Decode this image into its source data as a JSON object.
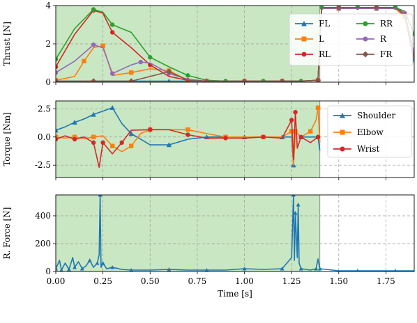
{
  "chart_data": [
    {
      "type": "line",
      "ylabel": "Thrust [N]",
      "xlim": [
        0,
        1.9
      ],
      "ylim": [
        0,
        4
      ],
      "yticks": [
        0,
        2,
        4
      ],
      "grid": true,
      "shaded_x": [
        0,
        1.4
      ],
      "legend_placement": "top-right",
      "legend_columns": 2,
      "series": [
        {
          "name": "FL",
          "color": "#1f77b4",
          "marker": "triangle",
          "x": [
            0.0,
            0.1,
            0.2,
            0.3,
            0.4,
            0.5,
            0.6,
            0.7,
            0.8,
            0.9,
            1.0,
            1.1,
            1.2,
            1.3,
            1.39,
            1.41,
            1.5,
            1.6,
            1.7,
            1.8,
            1.85,
            1.9
          ],
          "y": [
            0.05,
            0.05,
            0.05,
            0.05,
            0.05,
            0.05,
            0.05,
            0.05,
            0.05,
            0.05,
            0.05,
            0.05,
            0.05,
            0.05,
            0.1,
            3.85,
            3.85,
            3.85,
            3.85,
            3.85,
            3.5,
            1.0
          ]
        },
        {
          "name": "L",
          "color": "#ff7f0e",
          "marker": "square",
          "x": [
            0.0,
            0.1,
            0.15,
            0.2,
            0.25,
            0.3,
            0.4,
            0.5,
            0.6,
            0.7,
            0.8,
            0.9,
            1.0,
            1.1,
            1.2,
            1.3,
            1.39,
            1.41,
            1.5,
            1.6,
            1.7,
            1.8,
            1.85,
            1.9
          ],
          "y": [
            0.1,
            0.3,
            1.1,
            1.8,
            1.9,
            0.35,
            0.5,
            0.7,
            0.6,
            0.1,
            0.05,
            0.05,
            0.05,
            0.05,
            0.05,
            0.05,
            0.1,
            3.85,
            3.85,
            3.85,
            3.85,
            3.85,
            3.4,
            1.2
          ]
        },
        {
          "name": "RL",
          "color": "#d62728",
          "marker": "circle",
          "x": [
            0.0,
            0.1,
            0.2,
            0.25,
            0.3,
            0.4,
            0.5,
            0.6,
            0.7,
            0.8,
            0.9,
            1.0,
            1.1,
            1.2,
            1.3,
            1.39,
            1.41,
            1.5,
            1.6,
            1.7,
            1.8,
            1.85,
            1.9
          ],
          "y": [
            0.8,
            2.5,
            3.75,
            3.6,
            2.6,
            1.8,
            0.9,
            0.3,
            0.1,
            0.05,
            0.05,
            0.05,
            0.05,
            0.05,
            0.05,
            0.1,
            3.9,
            3.9,
            3.9,
            3.9,
            3.9,
            3.6,
            1.5
          ]
        },
        {
          "name": "RR",
          "color": "#2ca02c",
          "marker": "circle",
          "x": [
            0.0,
            0.1,
            0.2,
            0.25,
            0.3,
            0.4,
            0.5,
            0.6,
            0.7,
            0.8,
            0.9,
            1.0,
            1.1,
            1.2,
            1.3,
            1.39,
            1.41,
            1.5,
            1.6,
            1.7,
            1.8,
            1.85,
            1.9
          ],
          "y": [
            1.2,
            2.8,
            3.8,
            3.65,
            3.0,
            2.6,
            1.3,
            0.8,
            0.35,
            0.1,
            0.05,
            0.05,
            0.05,
            0.05,
            0.05,
            0.1,
            3.9,
            3.9,
            3.9,
            3.9,
            3.9,
            3.7,
            2.5
          ]
        },
        {
          "name": "R",
          "color": "#9467bd",
          "marker": "circle",
          "x": [
            0.0,
            0.1,
            0.2,
            0.25,
            0.3,
            0.4,
            0.45,
            0.5,
            0.6,
            0.7,
            0.8,
            0.9,
            1.0,
            1.1,
            1.2,
            1.3,
            1.39,
            1.41,
            1.5,
            1.6,
            1.7,
            1.8,
            1.85,
            1.9
          ],
          "y": [
            0.5,
            1.1,
            1.95,
            1.8,
            0.45,
            0.9,
            1.05,
            1.0,
            0.45,
            0.15,
            0.05,
            0.05,
            0.05,
            0.05,
            0.05,
            0.05,
            0.1,
            3.85,
            3.85,
            3.85,
            3.85,
            3.85,
            3.6,
            1.5
          ]
        },
        {
          "name": "FR",
          "color": "#8c564b",
          "marker": "diamond",
          "x": [
            0.0,
            0.1,
            0.2,
            0.3,
            0.4,
            0.5,
            0.6,
            0.7,
            0.8,
            0.9,
            1.0,
            1.1,
            1.2,
            1.3,
            1.39,
            1.41,
            1.5,
            1.6,
            1.7,
            1.8,
            1.85,
            1.9
          ],
          "y": [
            0.05,
            0.05,
            0.05,
            0.05,
            0.05,
            0.3,
            0.55,
            0.1,
            0.05,
            0.05,
            0.05,
            0.05,
            0.05,
            0.05,
            0.1,
            3.9,
            3.9,
            3.9,
            3.9,
            3.9,
            3.5,
            1.2
          ]
        }
      ]
    },
    {
      "type": "line",
      "ylabel": "Torque [Nm]",
      "xlim": [
        0,
        1.9
      ],
      "ylim": [
        -3.6,
        3.2
      ],
      "yticks": [
        -2.5,
        0.0,
        2.5
      ],
      "grid": true,
      "shaded_x": [
        0,
        1.4
      ],
      "legend_placement": "top-right",
      "legend_columns": 1,
      "series": [
        {
          "name": "Shoulder",
          "color": "#1f77b4",
          "marker": "triangle",
          "x": [
            0.0,
            0.05,
            0.1,
            0.15,
            0.2,
            0.25,
            0.3,
            0.35,
            0.4,
            0.5,
            0.6,
            0.7,
            0.8,
            0.9,
            1.0,
            1.1,
            1.2,
            1.25,
            1.26,
            1.27,
            1.3,
            1.35,
            1.39,
            1.4
          ],
          "y": [
            0.6,
            0.9,
            1.3,
            1.6,
            2.0,
            2.3,
            2.6,
            1.2,
            0.3,
            -0.7,
            -0.7,
            -0.2,
            0.0,
            0.0,
            0.0,
            0.0,
            0.0,
            0.0,
            -2.5,
            0.5,
            0.0,
            0.0,
            0.0,
            -1.2
          ]
        },
        {
          "name": "Elbow",
          "color": "#ff7f0e",
          "marker": "square",
          "x": [
            0.0,
            0.05,
            0.1,
            0.15,
            0.2,
            0.25,
            0.3,
            0.35,
            0.4,
            0.45,
            0.5,
            0.6,
            0.7,
            0.8,
            0.9,
            1.0,
            1.1,
            1.2,
            1.25,
            1.26,
            1.27,
            1.3,
            1.35,
            1.38,
            1.39,
            1.4
          ],
          "y": [
            0.0,
            -0.1,
            0.0,
            -0.15,
            0.0,
            0.1,
            -0.8,
            -1.3,
            -0.8,
            0.3,
            0.65,
            0.65,
            0.65,
            0.3,
            0.0,
            0.0,
            0.0,
            0.0,
            0.5,
            -2.5,
            0.5,
            0.0,
            0.5,
            1.5,
            2.6,
            -0.5
          ]
        },
        {
          "name": "Wrist",
          "color": "#d62728",
          "marker": "circle",
          "x": [
            0.0,
            0.05,
            0.1,
            0.15,
            0.2,
            0.23,
            0.25,
            0.3,
            0.35,
            0.4,
            0.5,
            0.6,
            0.7,
            0.8,
            0.9,
            1.0,
            1.1,
            1.2,
            1.25,
            1.26,
            1.27,
            1.28,
            1.3,
            1.35,
            1.39,
            1.4
          ],
          "y": [
            -0.2,
            0.1,
            -0.2,
            0.0,
            -0.5,
            -2.7,
            -0.5,
            -1.5,
            -0.5,
            0.6,
            0.65,
            0.65,
            0.2,
            -0.1,
            -0.1,
            -0.1,
            0.0,
            -0.1,
            1.5,
            -2.0,
            2.2,
            -1.0,
            0.0,
            -0.5,
            0.0,
            0.0
          ]
        }
      ]
    },
    {
      "type": "line",
      "ylabel": "R. Force [N]",
      "xlabel": "Time [s]",
      "xlim": [
        0,
        1.9
      ],
      "ylim": [
        0,
        550
      ],
      "yticks": [
        0,
        200,
        400
      ],
      "xticks": [
        0.0,
        0.25,
        0.5,
        0.75,
        1.0,
        1.25,
        1.5,
        1.75
      ],
      "xticklabels": [
        "0.00",
        "0.25",
        "0.50",
        "0.75",
        "1.00",
        "1.25",
        "1.50",
        "1.75"
      ],
      "grid": true,
      "shaded_x": [
        0,
        1.4
      ],
      "series": [
        {
          "name": "",
          "color": "#1f77b4",
          "marker": "triangle",
          "x": [
            0.0,
            0.02,
            0.03,
            0.05,
            0.07,
            0.09,
            0.1,
            0.12,
            0.14,
            0.16,
            0.18,
            0.2,
            0.22,
            0.23,
            0.235,
            0.24,
            0.25,
            0.27,
            0.3,
            0.35,
            0.4,
            0.5,
            0.6,
            0.7,
            0.8,
            0.9,
            1.0,
            1.1,
            1.2,
            1.25,
            1.26,
            1.265,
            1.27,
            1.28,
            1.285,
            1.29,
            1.3,
            1.35,
            1.38,
            1.39,
            1.4,
            1.5,
            1.6,
            1.7,
            1.8,
            1.9
          ],
          "y": [
            20,
            80,
            10,
            60,
            15,
            100,
            30,
            70,
            20,
            40,
            80,
            30,
            60,
            120,
            550,
            30,
            60,
            20,
            30,
            15,
            10,
            10,
            15,
            10,
            10,
            10,
            20,
            15,
            20,
            100,
            550,
            80,
            420,
            100,
            480,
            60,
            20,
            10,
            20,
            90,
            20,
            5,
            5,
            5,
            5,
            5
          ]
        }
      ]
    }
  ]
}
